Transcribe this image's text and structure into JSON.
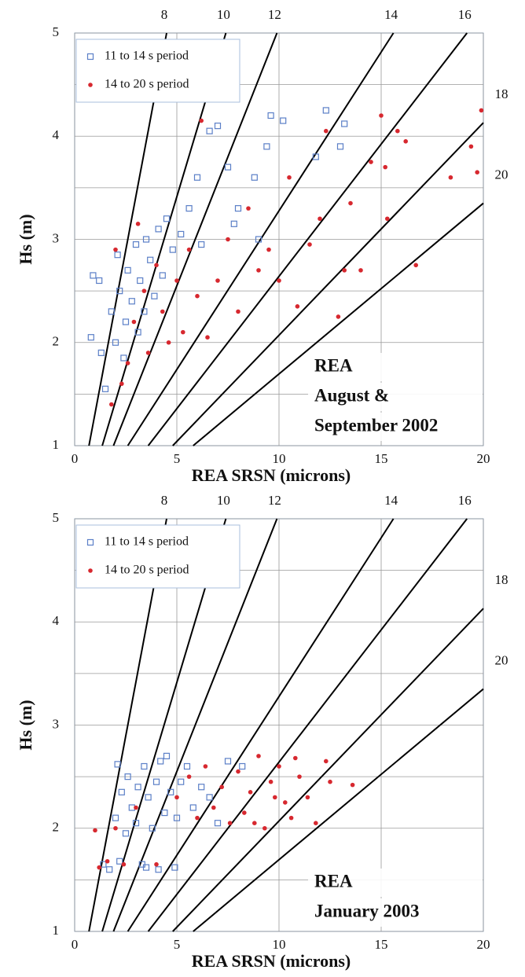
{
  "chart_data": [
    {
      "type": "scatter",
      "xlabel": "REA  SRSN (microns)",
      "ylabel": "Hs (m)",
      "xlim": [
        0,
        20
      ],
      "ylim": [
        1,
        5
      ],
      "xticks": [
        0,
        5,
        10,
        15,
        20
      ],
      "yticks": [
        1,
        2,
        3,
        4,
        5
      ],
      "minor_ygrid": [
        1.5,
        2.5,
        3.5,
        4.5
      ],
      "grid": true,
      "annotation": [
        "REA",
        "August &",
        "September 2002"
      ],
      "reference_lines": [
        {
          "label": "8",
          "x": [
            0.7,
            4.5
          ],
          "y": [
            1,
            5
          ]
        },
        {
          "label": "10",
          "x": [
            1.35,
            7.4
          ],
          "y": [
            1,
            5
          ]
        },
        {
          "label": "12",
          "x": [
            1.9,
            9.9
          ],
          "y": [
            1,
            5
          ]
        },
        {
          "label": "14",
          "x": [
            2.6,
            15.6
          ],
          "y": [
            1,
            5
          ]
        },
        {
          "label": "16",
          "x": [
            3.6,
            19.2
          ],
          "y": [
            1,
            5
          ]
        },
        {
          "label": "18",
          "x": [
            4.8,
            20
          ],
          "y": [
            1,
            4.13
          ]
        },
        {
          "label": "20",
          "x": [
            5.8,
            20
          ],
          "y": [
            1,
            3.35
          ]
        }
      ],
      "series": [
        {
          "name": "11 to 14 s period",
          "color": "#5b7fc7",
          "marker": "square",
          "x": [
            0.9,
            1.2,
            0.8,
            1.3,
            1.5,
            1.8,
            2.0,
            2.1,
            2.2,
            2.4,
            2.5,
            2.6,
            2.8,
            3.0,
            3.1,
            3.2,
            3.4,
            3.5,
            3.7,
            3.9,
            4.1,
            4.3,
            4.5,
            4.8,
            5.2,
            5.6,
            6.0,
            6.6,
            7.0,
            7.5,
            8.0,
            8.8,
            9.4,
            9.6,
            10.2,
            11.8,
            12.3,
            13.0,
            13.2,
            9.0,
            7.8,
            6.2
          ],
          "values": [
            2.65,
            2.6,
            2.05,
            1.9,
            1.55,
            2.3,
            2.0,
            2.85,
            2.5,
            1.85,
            2.2,
            2.7,
            2.4,
            2.95,
            2.1,
            2.6,
            2.3,
            3.0,
            2.8,
            2.45,
            3.1,
            2.65,
            3.2,
            2.9,
            3.05,
            3.3,
            3.6,
            4.05,
            4.1,
            3.7,
            3.3,
            3.6,
            3.9,
            4.2,
            4.15,
            3.8,
            4.25,
            3.9,
            4.12,
            3.0,
            3.15,
            2.95
          ]
        },
        {
          "name": "14 to 20 s period",
          "color": "#d7282f",
          "marker": "circle",
          "x": [
            1.8,
            2.0,
            2.3,
            2.6,
            2.9,
            3.1,
            3.4,
            3.6,
            4.0,
            4.3,
            4.6,
            5.0,
            5.3,
            5.6,
            6.0,
            6.2,
            6.5,
            7.0,
            7.5,
            8.0,
            8.5,
            9.0,
            9.5,
            10.0,
            10.5,
            10.9,
            11.5,
            12.0,
            12.3,
            12.9,
            13.2,
            13.5,
            14.0,
            14.5,
            15.0,
            15.2,
            15.3,
            15.8,
            16.2,
            16.7,
            18.4,
            19.4,
            19.7,
            19.9
          ],
          "values": [
            1.4,
            2.9,
            1.6,
            1.8,
            2.2,
            3.15,
            2.5,
            1.9,
            2.75,
            2.3,
            2.0,
            2.6,
            2.1,
            2.9,
            2.45,
            4.15,
            2.05,
            2.6,
            3.0,
            2.3,
            3.3,
            2.7,
            2.9,
            2.6,
            3.6,
            2.35,
            2.95,
            3.2,
            4.05,
            2.25,
            2.7,
            3.35,
            2.7,
            3.75,
            4.2,
            3.7,
            3.2,
            4.05,
            3.95,
            2.75,
            3.6,
            3.9,
            3.65,
            4.25
          ]
        }
      ]
    },
    {
      "type": "scatter",
      "xlabel": "REA SRSN (microns)",
      "ylabel": "Hs (m)",
      "xlim": [
        0,
        20
      ],
      "ylim": [
        1,
        5
      ],
      "xticks": [
        0,
        5,
        10,
        15,
        20
      ],
      "yticks": [
        1,
        2,
        3,
        4,
        5
      ],
      "minor_ygrid": [
        1.5,
        2.5,
        3.5,
        4.5
      ],
      "grid": true,
      "annotation": [
        "REA",
        "January 2003"
      ],
      "reference_lines": [
        {
          "label": "8",
          "x": [
            0.7,
            4.5
          ],
          "y": [
            1,
            5
          ]
        },
        {
          "label": "10",
          "x": [
            1.35,
            7.4
          ],
          "y": [
            1,
            5
          ]
        },
        {
          "label": "12",
          "x": [
            1.9,
            9.9
          ],
          "y": [
            1,
            5
          ]
        },
        {
          "label": "14",
          "x": [
            2.6,
            15.6
          ],
          "y": [
            1,
            5
          ]
        },
        {
          "label": "16",
          "x": [
            3.6,
            19.2
          ],
          "y": [
            1,
            5
          ]
        },
        {
          "label": "18",
          "x": [
            4.8,
            20
          ],
          "y": [
            1,
            4.13
          ]
        },
        {
          "label": "20",
          "x": [
            5.8,
            20
          ],
          "y": [
            1,
            3.35
          ]
        }
      ],
      "series": [
        {
          "name": "11 to 14 s period",
          "color": "#5b7fc7",
          "marker": "square",
          "x": [
            2.1,
            2.3,
            2.0,
            2.5,
            2.6,
            2.8,
            3.0,
            3.1,
            3.3,
            3.4,
            3.6,
            3.8,
            4.0,
            4.1,
            4.2,
            4.4,
            4.5,
            4.7,
            4.9,
            5.0,
            5.2,
            5.5,
            5.8,
            6.2,
            6.6,
            7.0,
            7.5,
            8.2,
            1.4,
            1.7,
            2.2,
            3.5
          ],
          "values": [
            2.62,
            2.35,
            2.1,
            1.95,
            2.5,
            2.2,
            2.05,
            2.4,
            1.65,
            2.6,
            2.3,
            2.0,
            2.45,
            1.6,
            2.65,
            2.15,
            2.7,
            2.35,
            1.62,
            2.1,
            2.45,
            2.6,
            2.2,
            2.4,
            2.3,
            2.05,
            2.65,
            2.6,
            1.65,
            1.6,
            1.68,
            1.62
          ]
        },
        {
          "name": "14 to 20 s period",
          "color": "#d7282f",
          "marker": "circle",
          "x": [
            1.0,
            1.2,
            1.6,
            2.0,
            2.4,
            3.0,
            4.0,
            5.0,
            5.6,
            6.0,
            6.4,
            6.8,
            7.2,
            7.6,
            8.0,
            8.3,
            8.6,
            9.0,
            9.3,
            9.6,
            10.0,
            10.3,
            10.6,
            11.0,
            11.4,
            11.8,
            12.3,
            12.5,
            13.6,
            10.8,
            9.8,
            8.8
          ],
          "values": [
            1.98,
            1.62,
            1.68,
            2.0,
            1.65,
            2.2,
            1.65,
            2.3,
            2.5,
            2.1,
            2.6,
            2.2,
            2.4,
            2.05,
            2.55,
            2.15,
            2.35,
            2.7,
            2.0,
            2.45,
            2.6,
            2.25,
            2.1,
            2.5,
            2.3,
            2.05,
            2.65,
            2.45,
            2.42,
            2.68,
            2.3,
            2.05
          ]
        }
      ]
    }
  ]
}
